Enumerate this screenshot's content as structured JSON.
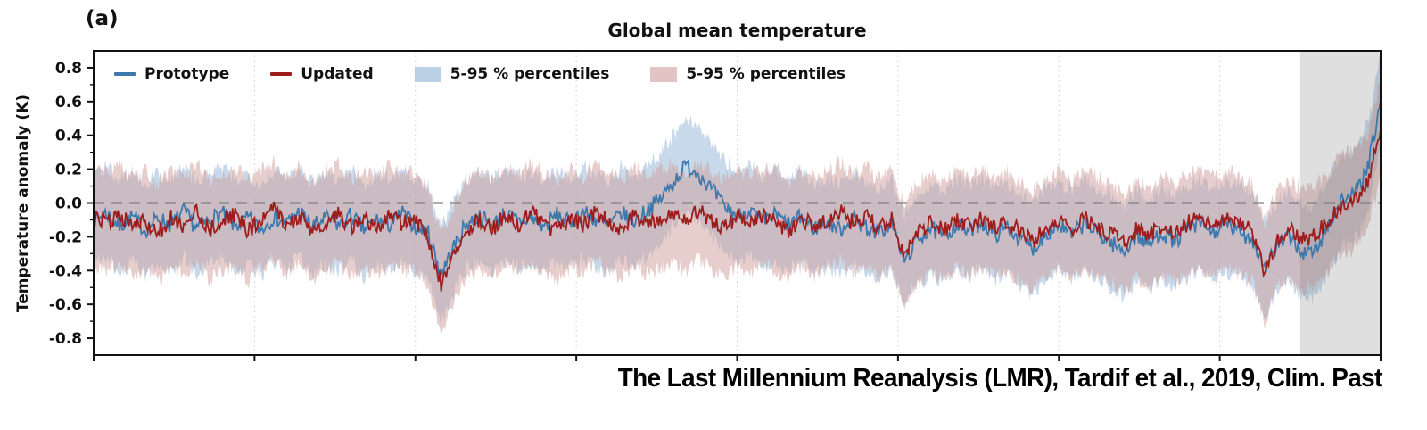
{
  "panel_label": "(a)",
  "title": "Global mean temperature",
  "caption": "The Last Millennium Reanalysis (LMR), Tardif et al., 2019, Clim. Past",
  "axes": {
    "y": {
      "label": "Temperature anomaly (K)",
      "ticks": [
        "0.8",
        "0.6",
        "0.4",
        "0.2",
        "0.0",
        "-0.2",
        "-0.4",
        "-0.6",
        "-0.8"
      ],
      "range": [
        -0.9,
        0.9
      ]
    },
    "x": {
      "range": [
        0,
        2000
      ],
      "tick_labels_visible": false
    }
  },
  "legend": [
    {
      "label": "Prototype",
      "type": "line",
      "color": "#3d79ad"
    },
    {
      "label": "Updated",
      "type": "line",
      "color": "#9e1c1c"
    },
    {
      "label": "5-95 % percentiles",
      "type": "patch",
      "color": "#8fb3d6"
    },
    {
      "label": "5-95 % percentiles",
      "type": "patch",
      "color": "#cf9e9a"
    }
  ],
  "chart_data": {
    "type": "line",
    "title": "Global mean temperature",
    "ylabel": "Temperature anomaly (K)",
    "ylim": [
      -0.9,
      0.9
    ],
    "xlim": [
      0,
      2000
    ],
    "x": [
      0,
      20,
      40,
      60,
      80,
      100,
      120,
      140,
      160,
      180,
      200,
      220,
      240,
      260,
      280,
      300,
      320,
      340,
      360,
      380,
      400,
      420,
      440,
      460,
      480,
      500,
      520,
      540,
      560,
      580,
      600,
      620,
      640,
      660,
      680,
      700,
      720,
      740,
      760,
      780,
      800,
      820,
      840,
      860,
      880,
      900,
      920,
      940,
      960,
      980,
      1000,
      1020,
      1040,
      1060,
      1080,
      1100,
      1120,
      1140,
      1160,
      1180,
      1200,
      1220,
      1240,
      1260,
      1280,
      1300,
      1320,
      1340,
      1360,
      1380,
      1400,
      1420,
      1440,
      1460,
      1480,
      1500,
      1520,
      1540,
      1560,
      1580,
      1600,
      1620,
      1640,
      1660,
      1680,
      1700,
      1720,
      1740,
      1760,
      1780,
      1800,
      1820,
      1840,
      1860,
      1880,
      1900,
      1920,
      1940,
      1960,
      1980,
      2000
    ],
    "series": [
      {
        "name": "Prototype",
        "color": "#3d79ad",
        "band_color": "#8fb3d6",
        "band_halfwidth": 0.27,
        "values": [
          -0.1,
          -0.06,
          -0.14,
          -0.08,
          -0.16,
          -0.09,
          -0.13,
          -0.05,
          -0.15,
          -0.1,
          -0.06,
          -0.14,
          -0.09,
          -0.16,
          -0.08,
          -0.12,
          -0.05,
          -0.14,
          -0.09,
          -0.13,
          -0.07,
          -0.16,
          -0.1,
          -0.13,
          -0.06,
          -0.14,
          -0.18,
          -0.42,
          -0.26,
          -0.12,
          -0.08,
          -0.13,
          -0.06,
          -0.11,
          -0.09,
          -0.14,
          -0.07,
          -0.12,
          -0.05,
          -0.1,
          -0.14,
          -0.06,
          -0.11,
          -0.04,
          0.02,
          0.12,
          0.22,
          0.18,
          0.08,
          -0.02,
          -0.08,
          -0.04,
          -0.12,
          -0.07,
          -0.13,
          -0.08,
          -0.15,
          -0.11,
          -0.16,
          -0.09,
          -0.14,
          -0.18,
          -0.12,
          -0.34,
          -0.22,
          -0.15,
          -0.2,
          -0.13,
          -0.17,
          -0.11,
          -0.19,
          -0.14,
          -0.21,
          -0.27,
          -0.18,
          -0.13,
          -0.19,
          -0.12,
          -0.18,
          -0.23,
          -0.29,
          -0.19,
          -0.25,
          -0.17,
          -0.23,
          -0.16,
          -0.12,
          -0.18,
          -0.13,
          -0.17,
          -0.21,
          -0.38,
          -0.25,
          -0.2,
          -0.3,
          -0.28,
          -0.12,
          0.02,
          0.05,
          0.2,
          0.6
        ]
      },
      {
        "name": "Updated",
        "color": "#9e1c1c",
        "band_color": "#cf9e9a",
        "band_halfwidth": 0.29,
        "values": [
          -0.08,
          -0.12,
          -0.06,
          -0.15,
          -0.1,
          -0.18,
          -0.09,
          -0.14,
          -0.05,
          -0.16,
          -0.11,
          -0.07,
          -0.17,
          -0.1,
          -0.04,
          -0.13,
          -0.08,
          -0.18,
          -0.11,
          -0.06,
          -0.15,
          -0.09,
          -0.14,
          -0.07,
          -0.12,
          -0.1,
          -0.2,
          -0.48,
          -0.3,
          -0.16,
          -0.1,
          -0.15,
          -0.08,
          -0.13,
          -0.06,
          -0.12,
          -0.17,
          -0.09,
          -0.14,
          -0.05,
          -0.11,
          -0.16,
          -0.08,
          -0.13,
          -0.1,
          -0.06,
          -0.12,
          -0.04,
          -0.1,
          -0.15,
          -0.08,
          -0.13,
          -0.07,
          -0.11,
          -0.16,
          -0.09,
          -0.14,
          -0.1,
          -0.05,
          -0.12,
          -0.08,
          -0.15,
          -0.1,
          -0.3,
          -0.18,
          -0.12,
          -0.16,
          -0.1,
          -0.14,
          -0.08,
          -0.15,
          -0.11,
          -0.17,
          -0.22,
          -0.14,
          -0.1,
          -0.15,
          -0.09,
          -0.14,
          -0.18,
          -0.24,
          -0.15,
          -0.2,
          -0.13,
          -0.18,
          -0.12,
          -0.09,
          -0.14,
          -0.1,
          -0.13,
          -0.16,
          -0.42,
          -0.2,
          -0.16,
          -0.22,
          -0.18,
          -0.1,
          0.0,
          0.02,
          0.12,
          0.45
        ]
      }
    ],
    "zero_line": {
      "value": 0,
      "style": "dashed",
      "color": "#7f7f7f"
    },
    "shaded_region": {
      "x_start": 1875,
      "x_end": 2000,
      "color": "#808080",
      "opacity": 0.25
    },
    "gridlines": {
      "x_interval": 250,
      "style": "dotted",
      "color": "#cccccc"
    },
    "visual_noise": {
      "amplitude": 0.05,
      "substeps": 10,
      "seed": 7
    }
  }
}
